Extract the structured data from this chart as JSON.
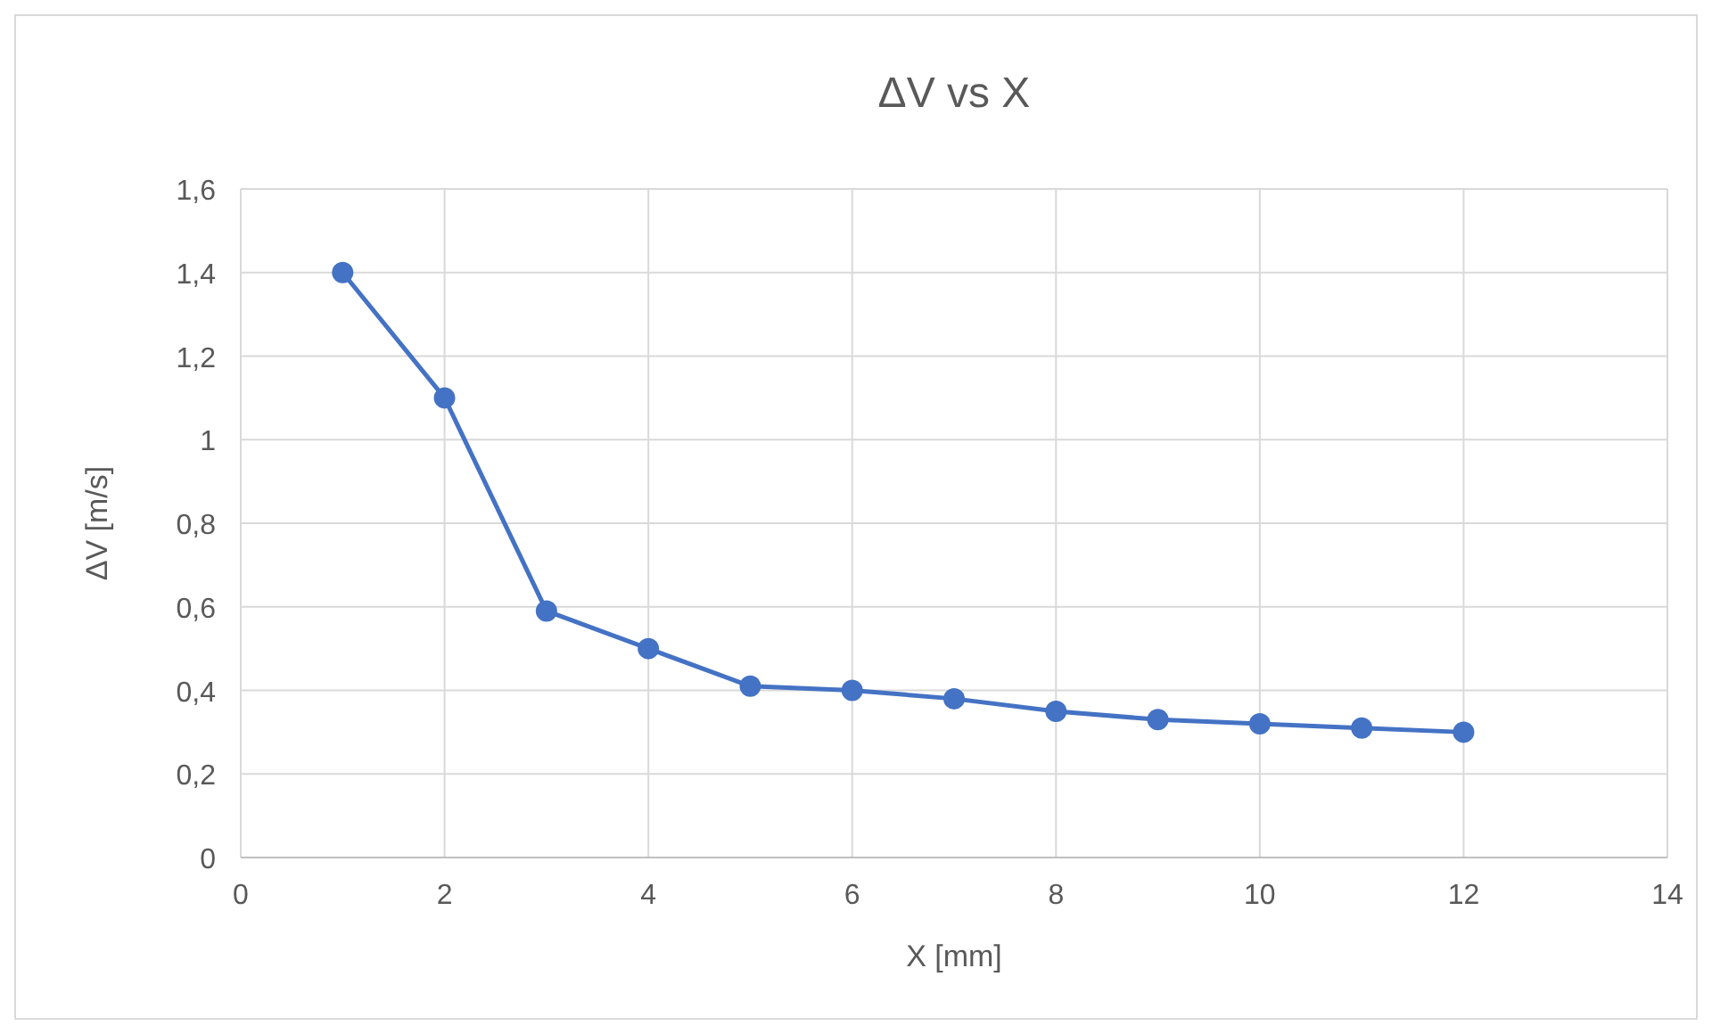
{
  "chart_data": {
    "type": "line",
    "title": "ΔV vs X",
    "xlabel": "X [mm]",
    "ylabel": "ΔV [m/s]",
    "x": [
      1,
      2,
      3,
      4,
      5,
      6,
      7,
      8,
      9,
      10,
      11,
      12
    ],
    "series": [
      {
        "color": "#4472c4",
        "values": [
          1.4,
          1.1,
          0.59,
          0.5,
          0.41,
          0.4,
          0.38,
          0.35,
          0.33,
          0.32,
          0.31,
          0.3
        ]
      }
    ],
    "xlim": [
      0,
      14
    ],
    "xticks": [
      0,
      2,
      4,
      6,
      8,
      10,
      12,
      14
    ],
    "ylim": [
      0,
      1.6
    ],
    "yticks": [
      0,
      {
        "value": 0.2,
        "label": "0,2"
      },
      {
        "value": 0.4,
        "label": "0,4"
      },
      {
        "value": 0.6,
        "label": "0,6"
      },
      {
        "value": 0.8,
        "label": "0,8"
      },
      1,
      {
        "value": 1.2,
        "label": "1,2"
      },
      {
        "value": 1.4,
        "label": "1,4"
      },
      {
        "value": 1.6,
        "label": "1,6"
      }
    ],
    "grid": true,
    "marker": "circle",
    "line_style": "solid"
  }
}
